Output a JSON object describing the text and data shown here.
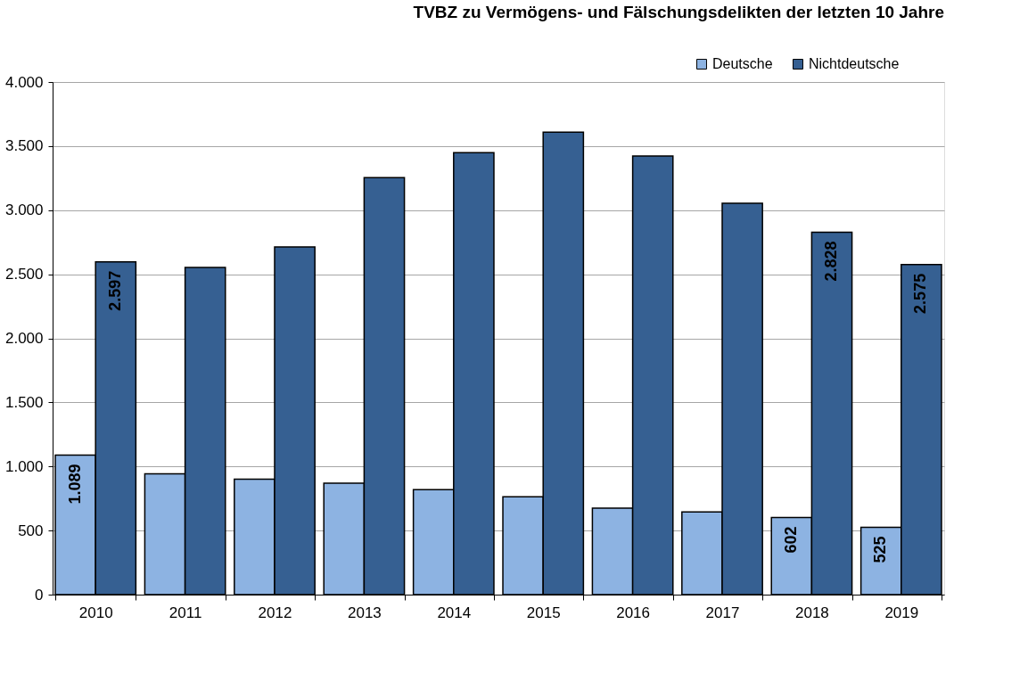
{
  "chart_data": {
    "type": "bar",
    "title": "TVBZ zu Vermögens- und Fälschungsdelikten der letzten 10 Jahre",
    "categories": [
      "2010",
      "2011",
      "2012",
      "2013",
      "2014",
      "2015",
      "2016",
      "2017",
      "2018",
      "2019"
    ],
    "series": [
      {
        "name": "Deutsche",
        "color": "#8db3e2",
        "values": [
          1089,
          943,
          901,
          869,
          819,
          764,
          675,
          646,
          602,
          525
        ],
        "value_labels": [
          "1.089",
          null,
          null,
          null,
          null,
          null,
          null,
          null,
          "602",
          "525"
        ]
      },
      {
        "name": "Nichtdeutsche",
        "color": "#366092",
        "values": [
          2597,
          2553,
          2713,
          3254,
          3448,
          3608,
          3422,
          3054,
          2828,
          2575
        ],
        "value_labels": [
          "2.597",
          null,
          null,
          null,
          null,
          null,
          null,
          null,
          "2.828",
          "2.575"
        ]
      }
    ],
    "ylim": [
      0,
      4000
    ],
    "yticks": [
      {
        "value": 0,
        "label": "0"
      },
      {
        "value": 500,
        "label": "500"
      },
      {
        "value": 1000,
        "label": "1.000"
      },
      {
        "value": 1500,
        "label": "1.500"
      },
      {
        "value": 2000,
        "label": "2.000"
      },
      {
        "value": 2500,
        "label": "2.500"
      },
      {
        "value": 3000,
        "label": "3.000"
      },
      {
        "value": 3500,
        "label": "3.500"
      },
      {
        "value": 4000,
        "label": "4.000"
      }
    ],
    "grid": "y",
    "legend": "top right"
  }
}
